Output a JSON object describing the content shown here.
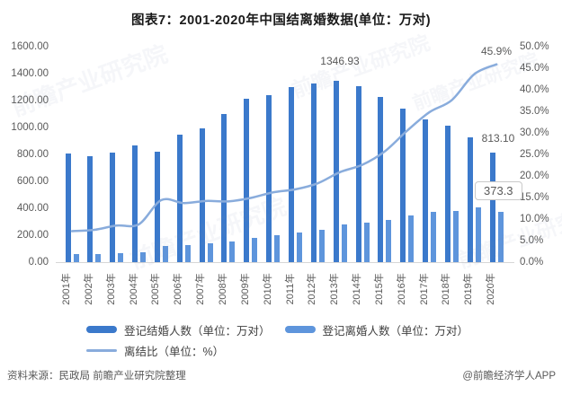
{
  "title": "图表7：2001-2020年中国结离婚数据(单位：万对)",
  "chart_data": {
    "type": "bar",
    "title": "图表7：2001-2020年中国结离婚数据(单位：万对)",
    "categories": [
      "2001年",
      "2002年",
      "2003年",
      "2004年",
      "2005年",
      "2006年",
      "2007年",
      "2008年",
      "2009年",
      "2010年",
      "2011年",
      "2012年",
      "2013年",
      "2014年",
      "2015年",
      "2016年",
      "2017年",
      "2018年",
      "2019年",
      "2020年"
    ],
    "series": [
      {
        "name": "登记结婚人数（单位：万对）",
        "type": "bar",
        "axis": "left",
        "color": "#3B79CB",
        "values": [
          805.0,
          786.0,
          811.4,
          867.2,
          823.1,
          945.0,
          991.4,
          1098.3,
          1212.2,
          1241.0,
          1302.4,
          1323.6,
          1346.93,
          1306.74,
          1224.7,
          1142.8,
          1063.1,
          1013.9,
          927.3,
          813.1
        ]
      },
      {
        "name": "登记离婚人数（单位：万对）",
        "type": "bar",
        "axis": "left",
        "color": "#5E95DC",
        "values": [
          58.1,
          58.8,
          69.1,
          76.0,
          118.7,
          129.1,
          140.4,
          155.3,
          180.2,
          201.0,
          220.7,
          242.3,
          281.5,
          295.7,
          314.9,
          348.6,
          370.4,
          381.2,
          404.7,
          373.3
        ]
      },
      {
        "name": "离结比（单位：%）",
        "type": "line",
        "axis": "right",
        "color": "#89ACDC",
        "values": [
          7.2,
          7.5,
          8.5,
          8.8,
          14.4,
          13.7,
          14.2,
          14.1,
          14.9,
          16.2,
          16.9,
          18.3,
          20.9,
          22.6,
          25.7,
          30.5,
          34.8,
          37.6,
          43.6,
          45.9
        ]
      }
    ],
    "left_axis": {
      "min": 0,
      "max": 1600,
      "step": 200,
      "ticks": [
        "0.00",
        "200.00",
        "400.00",
        "600.00",
        "800.00",
        "1000.00",
        "1200.00",
        "1400.00",
        "1600.00"
      ]
    },
    "right_axis": {
      "min": 0,
      "max": 50,
      "step": 5,
      "ticks": [
        "0.0%",
        "5.0%",
        "10.0%",
        "15.0%",
        "20.0%",
        "25.0%",
        "30.0%",
        "35.0%",
        "40.0%",
        "45.0%",
        "50.0%"
      ]
    },
    "grid": "off",
    "legend_position": "bottom",
    "annotations": {
      "peak_marriage": "1346.93",
      "last_marriage": "813.10",
      "last_ratio": "45.9%",
      "last_divorce": "373.3"
    }
  },
  "footer": {
    "source": "资料来源：民政局 前瞻产业研究院整理",
    "credit": "@前瞻经济学人APP"
  },
  "watermark": {
    "text": "前瞻产业研究院"
  }
}
